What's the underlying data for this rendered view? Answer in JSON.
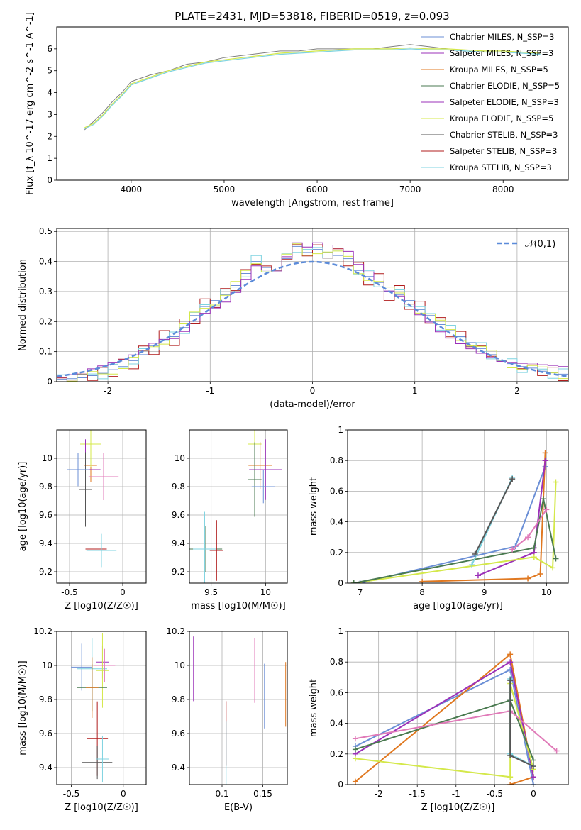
{
  "figure": {
    "title": "PLATE=2431, MJD=53818, FIBERID=0519, z=0.093"
  },
  "colors": {
    "Chabrier MILES": "#6b8fd6",
    "Salpeter MILES": "#9b30b8",
    "Kroupa MILES": "#e07820",
    "Chabrier ELODIE": "#4a7a50",
    "Salpeter ELODIE": "#9b30b8",
    "Kroupa ELODIE": "#d4e84a",
    "Chabrier STELIB": "#555555",
    "Salpeter STELIB": "#b01c1c",
    "Kroupa STELIB": "#7fd3e0",
    "pink": "#e07ab8",
    "gaussian": "#5b8bd9",
    "grid": "#b0b0b0"
  },
  "chart_data": [
    {
      "type": "line",
      "title": "PLATE=2431, MJD=53818, FIBERID=0519, z=0.093",
      "xlabel": "wavelength [Angstrom, rest frame]",
      "ylabel": "Flux [f_λ 10^-17 erg cm^-2 s^-1 A^-1]",
      "xlim": [
        3200,
        8700
      ],
      "ylim": [
        0,
        7
      ],
      "xticks": [
        4000,
        5000,
        6000,
        7000,
        8000
      ],
      "yticks": [
        0,
        1,
        2,
        3,
        4,
        5,
        6
      ],
      "grid": false,
      "legend_position": "right",
      "legend": [
        "Chabrier MILES, N_SSP=3",
        "Salpeter MILES, N_SSP=3",
        "Kroupa MILES, N_SSP=5",
        "Chabrier ELODIE, N_SSP=5",
        "Salpeter ELODIE, N_SSP=3",
        "Kroupa ELODIE, N_SSP=5",
        "Chabrier STELIB, N_SSP=3",
        "Salpeter STELIB, N_SSP=3",
        "Kroupa STELIB, N_SSP=3"
      ],
      "observed_flux": {
        "x": [
          3500,
          3600,
          3700,
          3800,
          3900,
          4000,
          4200,
          4400,
          4600,
          4800,
          5000,
          5200,
          5400,
          5600,
          5800,
          6000,
          6200,
          6400,
          6600,
          6800,
          7000,
          7200,
          7400
        ],
        "y": [
          2.3,
          2.7,
          3.1,
          3.6,
          4.0,
          4.5,
          4.8,
          5.0,
          5.3,
          5.4,
          5.6,
          5.7,
          5.8,
          5.9,
          5.9,
          6.0,
          6.0,
          6.0,
          6.0,
          6.1,
          6.2,
          6.1,
          6.0
        ]
      },
      "model_flux": {
        "x": [
          3500,
          3600,
          3700,
          3800,
          3900,
          4000,
          4200,
          4400,
          4600,
          4800,
          5000,
          5200,
          5400,
          5600,
          5800,
          6000,
          6200,
          6400,
          6600,
          6800,
          7000,
          7200,
          7400,
          7600,
          7800,
          8000,
          8200,
          8400
        ],
        "y": [
          2.4,
          2.6,
          3.0,
          3.5,
          3.9,
          4.4,
          4.7,
          5.0,
          5.2,
          5.4,
          5.5,
          5.6,
          5.7,
          5.8,
          5.85,
          5.9,
          5.95,
          6.0,
          6.0,
          6.0,
          6.05,
          6.0,
          6.0,
          5.95,
          5.9,
          5.9,
          5.85,
          5.8
        ]
      }
    },
    {
      "type": "line",
      "xlabel": "(data-model)/error",
      "ylabel": "Normed distribution",
      "xlim": [
        -2.5,
        2.5
      ],
      "ylim": [
        0,
        0.51
      ],
      "xticks": [
        -2,
        -1,
        0,
        1,
        2
      ],
      "yticks": [
        0.0,
        0.1,
        0.2,
        0.3,
        0.4,
        0.5
      ],
      "grid": true,
      "legend_position": "top-right",
      "legend": [
        "𝒩(0,1)"
      ],
      "bin_centers": [
        -2.45,
        -2.35,
        -2.25,
        -2.15,
        -2.05,
        -1.95,
        -1.85,
        -1.75,
        -1.65,
        -1.55,
        -1.45,
        -1.35,
        -1.25,
        -1.15,
        -1.05,
        -0.95,
        -0.85,
        -0.75,
        -0.65,
        -0.55,
        -0.45,
        -0.35,
        -0.25,
        -0.15,
        -0.05,
        0.05,
        0.15,
        0.25,
        0.35,
        0.45,
        0.55,
        0.65,
        0.75,
        0.85,
        0.95,
        1.05,
        1.15,
        1.25,
        1.35,
        1.45,
        1.55,
        1.65,
        1.75,
        1.85,
        1.95,
        2.05,
        2.15,
        2.25,
        2.35,
        2.45
      ],
      "histogram": [
        0.008,
        0.01,
        0.013,
        0.02,
        0.028,
        0.04,
        0.05,
        0.07,
        0.09,
        0.12,
        0.14,
        0.15,
        0.18,
        0.22,
        0.25,
        0.27,
        0.29,
        0.32,
        0.36,
        0.4,
        0.38,
        0.37,
        0.41,
        0.45,
        0.43,
        0.44,
        0.43,
        0.42,
        0.41,
        0.37,
        0.35,
        0.33,
        0.3,
        0.29,
        0.27,
        0.24,
        0.22,
        0.19,
        0.17,
        0.15,
        0.13,
        0.11,
        0.09,
        0.07,
        0.06,
        0.05,
        0.045,
        0.035,
        0.03,
        0.025
      ]
    },
    {
      "type": "scatter",
      "xlabel": "Z [log10(Z/Z☉)]",
      "ylabel": "age  [log10(age/yr)]",
      "xlim": [
        -0.62,
        0.22
      ],
      "ylim": [
        9.12,
        10.2
      ],
      "xticks": [
        -0.5,
        0.0
      ],
      "yticks": [
        9.2,
        9.4,
        9.6,
        9.8,
        10.0
      ],
      "grid": true,
      "points": [
        {
          "x": -0.3,
          "y": 9.95,
          "color": "Kroupa MILES"
        },
        {
          "x": -0.3,
          "y": 10.1,
          "color": "Kroupa ELODIE"
        },
        {
          "x": -0.35,
          "y": 9.92,
          "color": "Salpeter MILES"
        },
        {
          "x": -0.35,
          "y": 9.78,
          "color": "Chabrier STELIB"
        },
        {
          "x": -0.42,
          "y": 9.92,
          "color": "Chabrier MILES"
        },
        {
          "x": -0.18,
          "y": 9.87,
          "color": "pink"
        },
        {
          "x": -0.25,
          "y": 9.36,
          "color": "Chabrier ELODIE"
        },
        {
          "x": -0.25,
          "y": 9.36,
          "color": "Salpeter STELIB"
        },
        {
          "x": -0.2,
          "y": 9.35,
          "color": "Kroupa STELIB"
        }
      ]
    },
    {
      "type": "scatter",
      "xlabel": "mass [log10(M/M☉)]",
      "xlim": [
        9.3,
        10.2
      ],
      "ylim": [
        9.12,
        10.2
      ],
      "xticks": [
        9.5,
        10.0
      ],
      "yticks": [
        9.2,
        9.4,
        9.6,
        9.8,
        10.0
      ],
      "grid": true,
      "points": [
        {
          "x": 9.9,
          "y": 10.1,
          "color": "Kroupa ELODIE"
        },
        {
          "x": 9.95,
          "y": 9.95,
          "color": "Kroupa MILES"
        },
        {
          "x": 10.0,
          "y": 9.92,
          "color": "Salpeter MILES"
        },
        {
          "x": 9.9,
          "y": 9.85,
          "color": "Chabrier ELODIE"
        },
        {
          "x": 9.98,
          "y": 9.8,
          "color": "Chabrier MILES"
        },
        {
          "x": 9.45,
          "y": 9.36,
          "color": "Chabrier ELODIE"
        },
        {
          "x": 9.55,
          "y": 9.35,
          "color": "Salpeter STELIB"
        },
        {
          "x": 9.44,
          "y": 9.36,
          "color": "Kroupa STELIB"
        }
      ]
    },
    {
      "type": "line",
      "xlabel": "age  [log10(age/yr)]",
      "ylabel": "mass weight",
      "xlim": [
        6.8,
        10.35
      ],
      "ylim": [
        0,
        1
      ],
      "xticks": [
        7,
        8,
        9,
        10
      ],
      "yticks": [
        0.0,
        0.2,
        0.4,
        0.6,
        0.8,
        1.0
      ],
      "grid": true,
      "series": [
        {
          "color": "Chabrier MILES",
          "x": [
            7.0,
            9.5,
            9.98
          ],
          "y": [
            0.0,
            0.24,
            0.76
          ]
        },
        {
          "color": "Kroupa MILES",
          "x": [
            8.0,
            9.7,
            9.9,
            9.98
          ],
          "y": [
            0.01,
            0.03,
            0.06,
            0.85
          ]
        },
        {
          "color": "Salpeter MILES",
          "x": [
            8.9,
            9.8,
            9.98
          ],
          "y": [
            0.05,
            0.2,
            0.8
          ]
        },
        {
          "color": "Kroupa ELODIE",
          "x": [
            6.9,
            9.8,
            10.1,
            10.15
          ],
          "y": [
            0.0,
            0.17,
            0.1,
            0.66
          ]
        },
        {
          "color": "Chabrier ELODIE",
          "x": [
            6.9,
            9.8,
            9.95,
            10.15
          ],
          "y": [
            0.0,
            0.23,
            0.55,
            0.16
          ]
        },
        {
          "color": "pink",
          "x": [
            9.45,
            9.7,
            10.0
          ],
          "y": [
            0.22,
            0.3,
            0.48
          ]
        },
        {
          "color": "Kroupa STELIB",
          "x": [
            8.8,
            9.45
          ],
          "y": [
            0.12,
            0.69
          ]
        },
        {
          "color": "Chabrier STELIB",
          "x": [
            8.85,
            9.45
          ],
          "y": [
            0.19,
            0.68
          ]
        }
      ]
    },
    {
      "type": "scatter",
      "xlabel": "Z [log10(Z/Z☉)]",
      "ylabel": "mass [log10(M/M☉)]",
      "xlim": [
        -0.64,
        0.22
      ],
      "ylim": [
        9.3,
        10.2
      ],
      "xticks": [
        -0.5,
        0.0
      ],
      "yticks": [
        9.4,
        9.6,
        9.8,
        10.0,
        10.2
      ],
      "grid": true,
      "points": [
        {
          "x": -0.2,
          "y": 10.02,
          "color": "Salpeter MILES"
        },
        {
          "x": -0.4,
          "y": 9.99,
          "color": "Chabrier MILES"
        },
        {
          "x": -0.3,
          "y": 9.98,
          "color": "Kroupa STELIB"
        },
        {
          "x": -0.2,
          "y": 9.97,
          "color": "Kroupa ELODIE"
        },
        {
          "x": -0.18,
          "y": 10.0,
          "color": "pink"
        },
        {
          "x": -0.3,
          "y": 9.87,
          "color": "Chabrier ELODIE"
        },
        {
          "x": -0.3,
          "y": 9.87,
          "color": "Kroupa MILES"
        },
        {
          "x": -0.25,
          "y": 9.57,
          "color": "Salpeter STELIB"
        },
        {
          "x": -0.25,
          "y": 9.43,
          "color": "Chabrier STELIB"
        },
        {
          "x": -0.2,
          "y": 9.45,
          "color": "Kroupa STELIB"
        }
      ]
    },
    {
      "type": "scatter",
      "xlabel": "E(B-V)",
      "xlim": [
        0.06,
        0.18
      ],
      "ylim": [
        9.3,
        10.2
      ],
      "xticks": [
        0.1,
        0.15
      ],
      "yticks": [
        9.4,
        9.6,
        9.8,
        10.0,
        10.2
      ],
      "grid": true,
      "points": [
        {
          "x": 0.065,
          "y": 9.98,
          "color": "Salpeter MILES"
        },
        {
          "x": 0.09,
          "y": 9.88,
          "color": "Kroupa ELODIE"
        },
        {
          "x": 0.105,
          "y": 9.6,
          "color": "Salpeter STELIB"
        },
        {
          "x": 0.105,
          "y": 9.48,
          "color": "Kroupa STELIB"
        },
        {
          "x": 0.14,
          "y": 9.97,
          "color": "pink"
        },
        {
          "x": 0.152,
          "y": 9.82,
          "color": "Chabrier MILES"
        },
        {
          "x": 0.178,
          "y": 9.83,
          "color": "Kroupa MILES"
        }
      ]
    },
    {
      "type": "line",
      "xlabel": "Z [log10(Z/Z☉)]",
      "ylabel": "mass weight",
      "xlim": [
        -2.4,
        0.45
      ],
      "ylim": [
        0,
        1
      ],
      "xticks": [
        -2.0,
        -1.5,
        -1.0,
        -0.5,
        0.0
      ],
      "yticks": [
        0.0,
        0.2,
        0.4,
        0.6,
        0.8,
        1.0
      ],
      "grid": true,
      "series": [
        {
          "color": "Chabrier MILES",
          "x": [
            -2.3,
            -0.3,
            0.0
          ],
          "y": [
            0.25,
            0.75,
            0.0
          ]
        },
        {
          "color": "Kroupa MILES",
          "x": [
            -2.3,
            -0.3,
            0.0,
            -0.3
          ],
          "y": [
            0.02,
            0.85,
            0.05,
            0.0
          ]
        },
        {
          "color": "Salpeter MILES",
          "x": [
            -2.3,
            -0.3,
            0.0
          ],
          "y": [
            0.2,
            0.8,
            0.05
          ]
        },
        {
          "color": "Kroupa ELODIE",
          "x": [
            -2.3,
            -0.3,
            -0.3,
            0.0
          ],
          "y": [
            0.17,
            0.05,
            0.66,
            0.1
          ]
        },
        {
          "color": "Chabrier ELODIE",
          "x": [
            -2.3,
            -0.3,
            0.0
          ],
          "y": [
            0.23,
            0.55,
            0.16
          ]
        },
        {
          "color": "pink",
          "x": [
            -2.3,
            -0.3,
            0.3
          ],
          "y": [
            0.3,
            0.48,
            0.22
          ]
        },
        {
          "color": "Kroupa STELIB",
          "x": [
            -0.3,
            -0.3,
            0.0
          ],
          "y": [
            0.69,
            0.2,
            0.12
          ]
        },
        {
          "color": "Chabrier STELIB",
          "x": [
            -0.3,
            -0.3,
            0.0
          ],
          "y": [
            0.68,
            0.19,
            0.12
          ]
        }
      ]
    }
  ]
}
